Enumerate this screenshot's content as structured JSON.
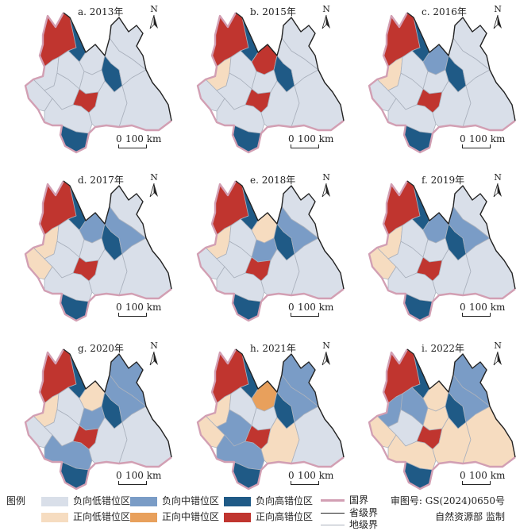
{
  "colors": {
    "neg_low": "#d9dfe9",
    "neg_mid": "#7a9cc6",
    "neg_high": "#1f5a86",
    "pos_low": "#f6dcc0",
    "pos_mid": "#e8a05c",
    "pos_high": "#c0352f",
    "national_border": "#d29fb3",
    "provincial_border": "#222222",
    "prefecture_border": "#aab1bd"
  },
  "panels": [
    {
      "title": "a. 2013年",
      "fills": [
        "pos_high",
        "neg_high",
        "neg_low",
        "neg_low",
        "neg_low",
        "neg_low",
        "neg_low",
        "neg_low",
        "neg_high",
        "neg_low",
        "pos_high",
        "neg_low",
        "neg_low",
        "neg_low",
        "neg_high",
        "neg_low"
      ]
    },
    {
      "title": "b. 2015年",
      "fills": [
        "pos_high",
        "neg_high",
        "pos_high",
        "pos_low",
        "neg_low",
        "neg_low",
        "neg_low",
        "neg_low",
        "neg_high",
        "neg_low",
        "pos_high",
        "neg_low",
        "neg_low",
        "neg_low",
        "neg_high",
        "neg_low"
      ]
    },
    {
      "title": "c. 2016年",
      "fills": [
        "pos_high",
        "neg_high",
        "neg_mid",
        "pos_low",
        "neg_low",
        "neg_low",
        "neg_low",
        "neg_low",
        "neg_high",
        "neg_low",
        "pos_high",
        "neg_low",
        "neg_low",
        "neg_low",
        "neg_high",
        "neg_low"
      ]
    },
    {
      "title": "d. 2017年",
      "fills": [
        "pos_high",
        "neg_high",
        "neg_mid",
        "pos_low",
        "pos_low",
        "neg_low",
        "neg_low",
        "neg_low",
        "neg_high",
        "neg_mid",
        "pos_high",
        "neg_low",
        "neg_low",
        "neg_low",
        "neg_high",
        "neg_low"
      ]
    },
    {
      "title": "e. 2018年",
      "fills": [
        "pos_high",
        "neg_high",
        "pos_low",
        "pos_low",
        "neg_low",
        "neg_low",
        "neg_low",
        "neg_mid",
        "neg_high",
        "neg_mid",
        "pos_high",
        "neg_low",
        "neg_low",
        "neg_low",
        "neg_high",
        "neg_low"
      ]
    },
    {
      "title": "f. 2019年",
      "fills": [
        "pos_high",
        "neg_high",
        "neg_mid",
        "pos_low",
        "pos_low",
        "neg_low",
        "neg_low",
        "neg_low",
        "neg_high",
        "neg_mid",
        "pos_high",
        "neg_low",
        "neg_low",
        "neg_low",
        "neg_high",
        "neg_low"
      ]
    },
    {
      "title": "g. 2020年",
      "fills": [
        "pos_high",
        "neg_high",
        "pos_low",
        "pos_low",
        "neg_low",
        "neg_low",
        "neg_low",
        "neg_mid",
        "neg_high",
        "neg_mid",
        "pos_high",
        "neg_mid",
        "neg_mid",
        "neg_low",
        "neg_high",
        "neg_low"
      ]
    },
    {
      "title": "h. 2021年",
      "fills": [
        "pos_high",
        "neg_high",
        "pos_mid",
        "pos_low",
        "pos_low",
        "neg_mid",
        "neg_low",
        "neg_low",
        "neg_high",
        "neg_mid",
        "pos_high",
        "neg_mid",
        "neg_mid",
        "pos_low",
        "neg_high",
        "neg_low"
      ]
    },
    {
      "title": "i. 2022年",
      "fills": [
        "pos_high",
        "neg_high",
        "pos_low",
        "neg_mid",
        "pos_low",
        "neg_low",
        "neg_mid",
        "pos_low",
        "neg_high",
        "neg_mid",
        "pos_high",
        "neg_mid",
        "pos_low",
        "pos_low",
        "neg_high",
        "pos_low"
      ]
    }
  ],
  "north_label": "N",
  "scale_zero": "0",
  "scale_label": "100 km",
  "legend": {
    "title": "图例",
    "neg_low": "负向低错位区",
    "neg_mid": "负向中错位区",
    "neg_high": "负向高错位区",
    "pos_low": "正向低错位区",
    "pos_mid": "正向中错位区",
    "pos_high": "正向高错位区",
    "national_border": "国界",
    "provincial_border": "省级界",
    "prefecture_border": "地级界"
  },
  "credit_line1": "审图号: GS(2024)0650号",
  "credit_line2": "自然资源部  监制"
}
